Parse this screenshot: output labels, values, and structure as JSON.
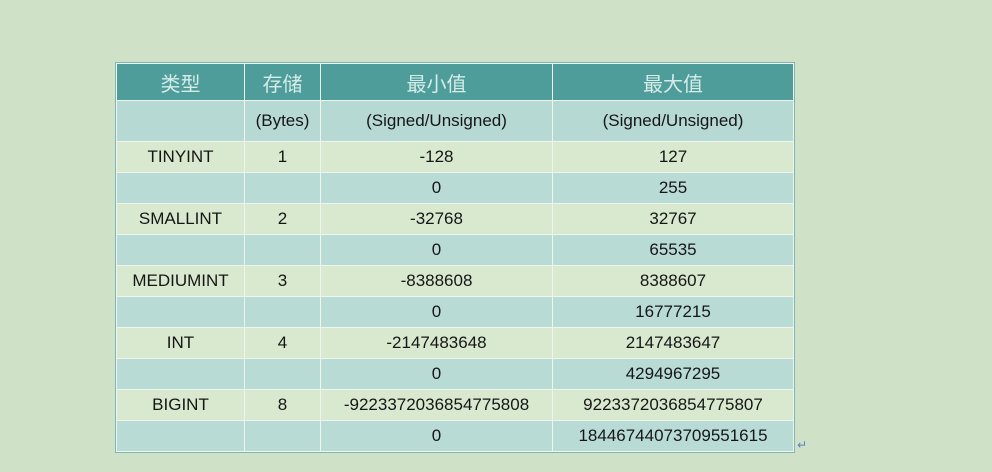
{
  "table": {
    "headers": [
      "类型",
      "存储",
      "最小值",
      "最大值"
    ],
    "subheaders": [
      "",
      "(Bytes)",
      "(Signed/Unsigned)",
      "(Signed/Unsigned)"
    ],
    "rows": [
      [
        "TINYINT",
        "1",
        "-128",
        "127"
      ],
      [
        "",
        "",
        "0",
        "255"
      ],
      [
        "SMALLINT",
        "2",
        "-32768",
        "32767"
      ],
      [
        "",
        "",
        "0",
        "65535"
      ],
      [
        "MEDIUMINT",
        "3",
        "-8388608",
        "8388607"
      ],
      [
        "",
        "",
        "0",
        "16777215"
      ],
      [
        "INT",
        "4",
        "-2147483648",
        "2147483647"
      ],
      [
        "",
        "",
        "0",
        "4294967295"
      ],
      [
        "BIGINT",
        "8",
        "-9223372036854775808",
        "9223372036854775807"
      ],
      [
        "",
        "",
        "0",
        "18446744073709551615"
      ]
    ]
  },
  "return_mark": "↵",
  "colors": {
    "page_bg": "#cfe2c7",
    "header_bg": "#4f9d9b",
    "header_text": "#d6ece8",
    "sub_bg": "#b7d9d4",
    "row_light": "#d8e9cf",
    "row_teal": "#b9dbd6",
    "grid": "#eef5ee",
    "text": "#161616",
    "mark": "#5a7fc6"
  }
}
